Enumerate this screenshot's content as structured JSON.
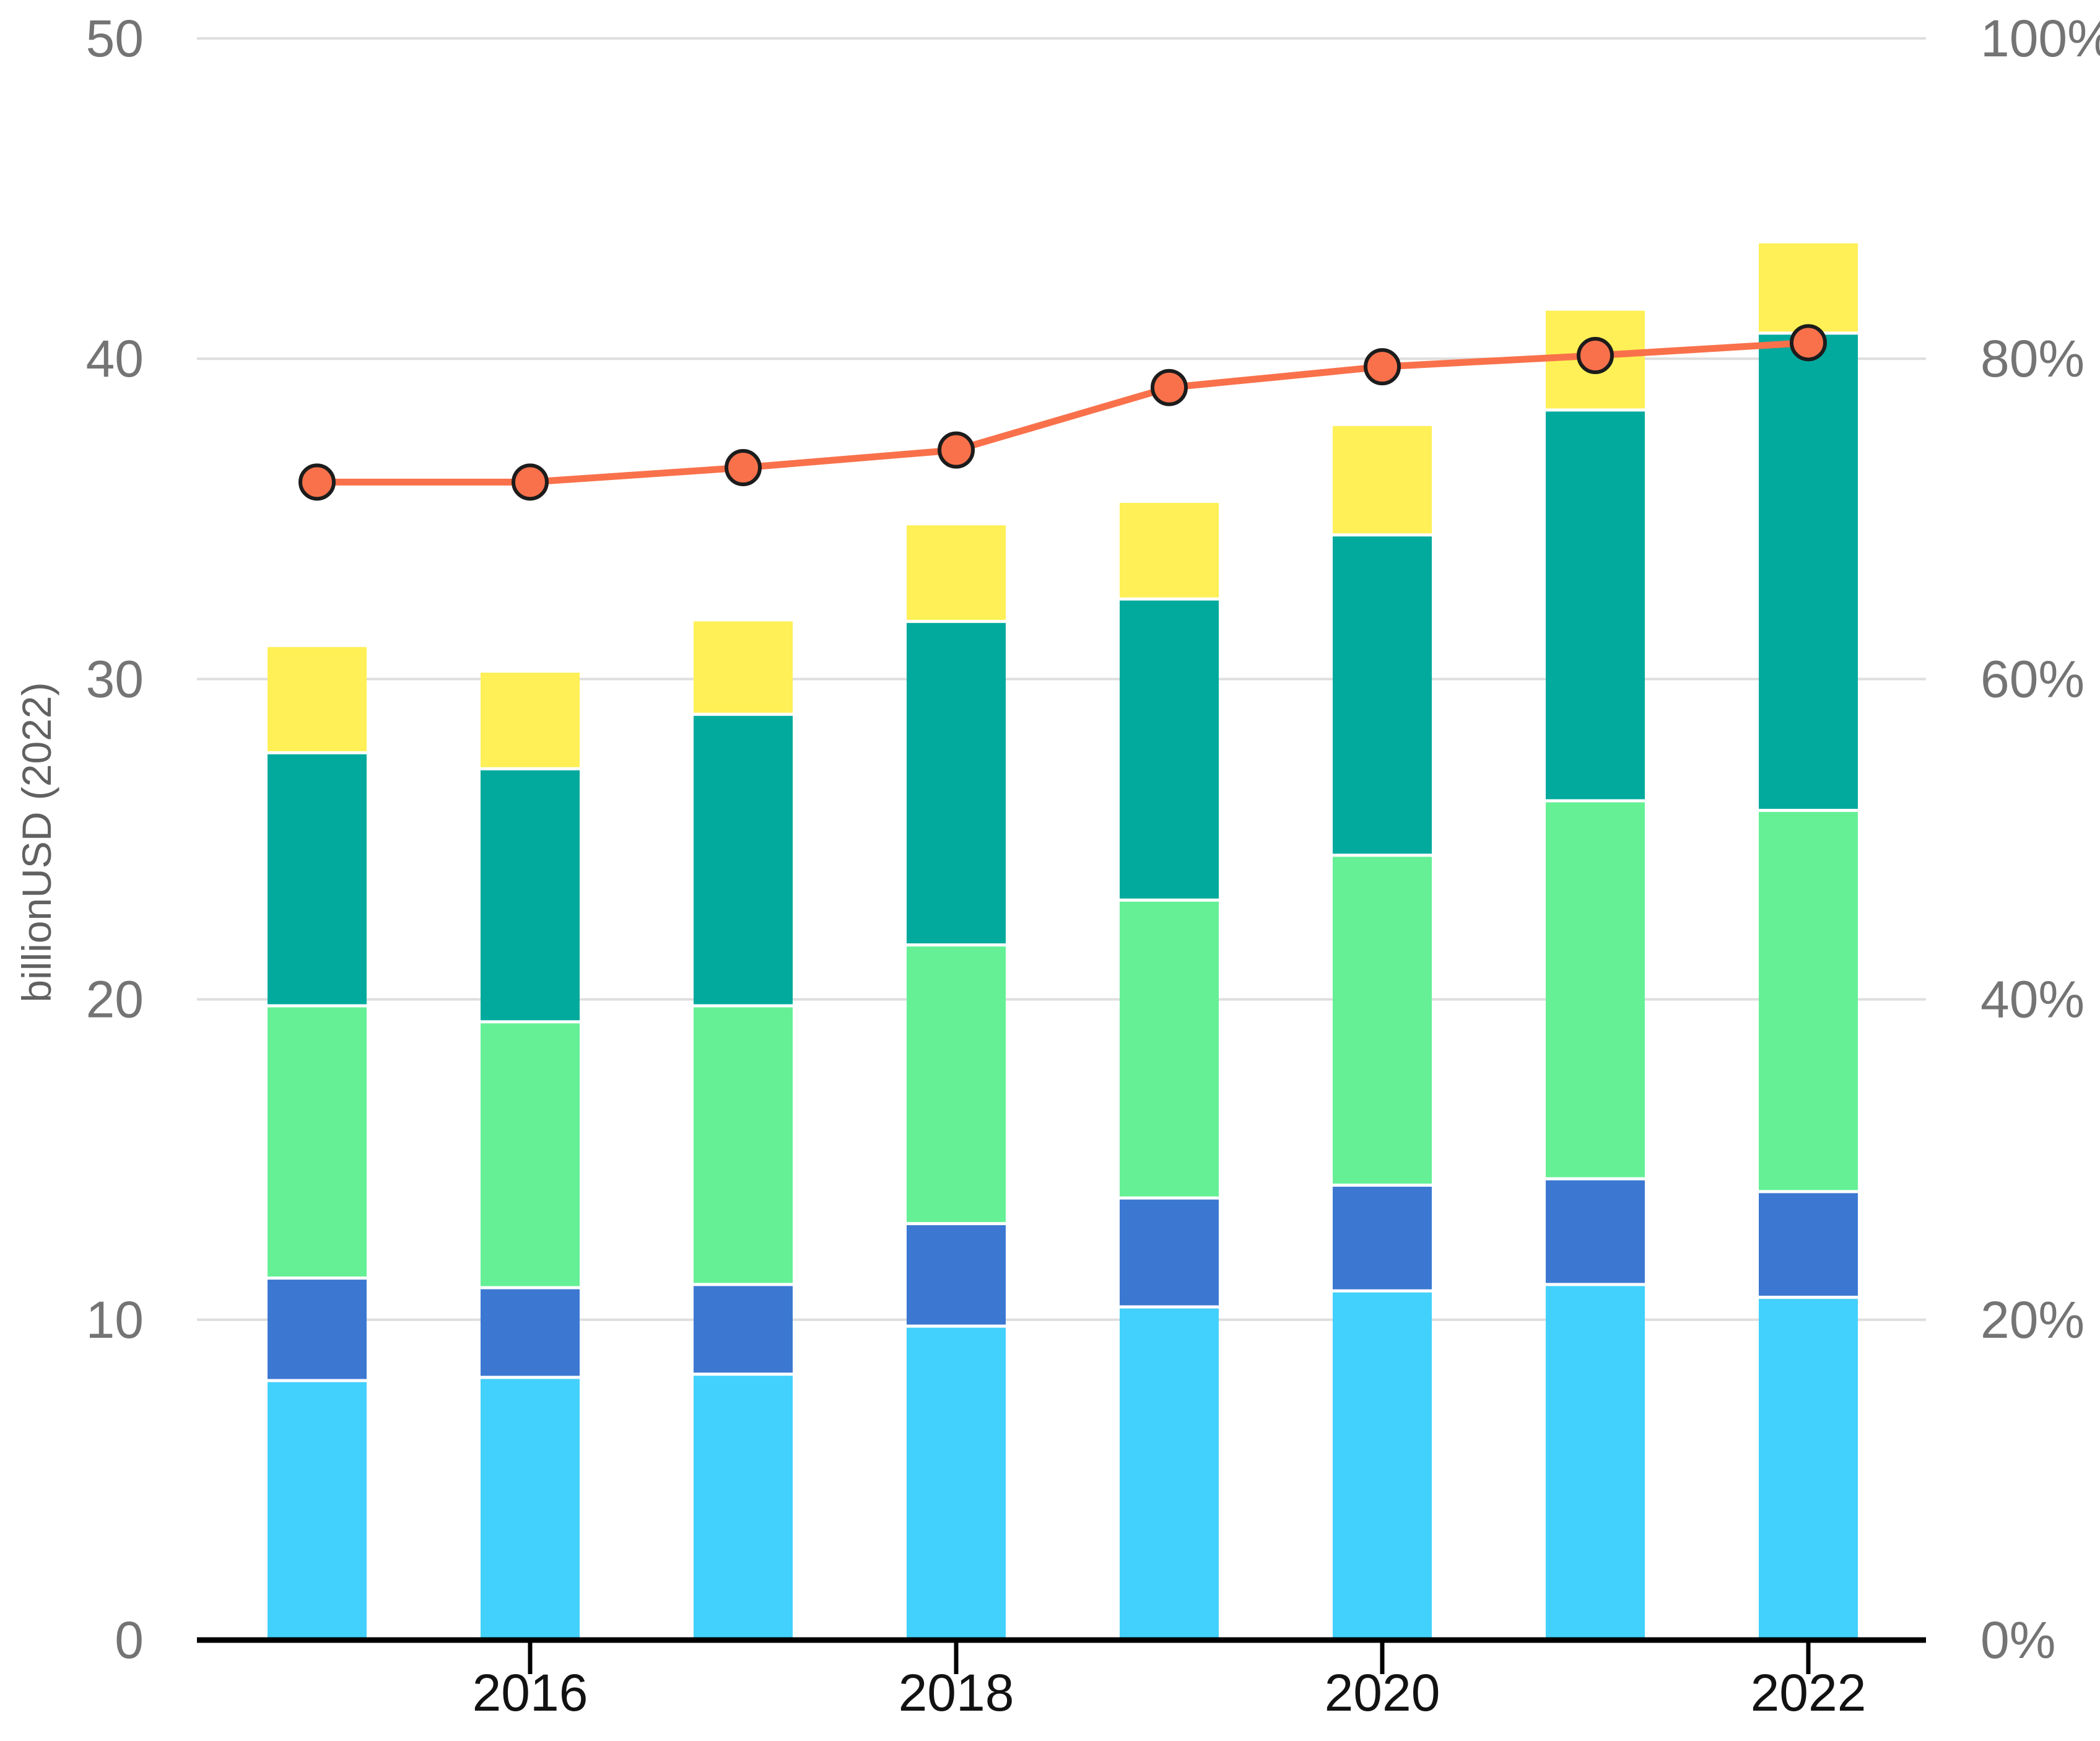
{
  "chart_data": {
    "type": "bar+line",
    "title": "",
    "categories": [
      2015,
      2016,
      2017,
      2018,
      2019,
      2020,
      2021,
      2022
    ],
    "series": [
      {
        "name": "light-blue-bottom-segment",
        "color": "#42D1FC",
        "values": [
          8.1,
          8.2,
          8.3,
          9.8,
          10.4,
          10.9,
          11.1,
          10.7
        ]
      },
      {
        "name": "royal-blue-segment",
        "color": "#3C78D2",
        "values": [
          3.2,
          2.8,
          2.8,
          3.2,
          3.4,
          3.3,
          3.3,
          3.3
        ]
      },
      {
        "name": "light-green-segment",
        "color": "#65F096",
        "values": [
          8.5,
          8.3,
          8.7,
          8.7,
          9.3,
          10.3,
          11.8,
          11.9
        ]
      },
      {
        "name": "teal-segment",
        "color": "#01AA9D",
        "values": [
          7.9,
          7.9,
          9.1,
          10.1,
          9.4,
          10.0,
          12.2,
          14.9
        ]
      },
      {
        "name": "yellow-top-segment",
        "color": "#FEF056",
        "values": [
          3.3,
          3.0,
          2.9,
          3.0,
          3.0,
          3.4,
          3.1,
          2.8
        ]
      }
    ],
    "bar_totals": [
      31.0,
      30.2,
      31.8,
      34.8,
      35.5,
      37.9,
      41.5,
      43.6
    ],
    "line_series": {
      "name": "percent-trend-line",
      "color": "#F9714B",
      "marker_stroke": "#1c1c1c",
      "axis": "right",
      "values_percent": [
        72.3,
        72.3,
        73.2,
        74.3,
        78.2,
        79.5,
        80.2,
        81.0
      ]
    },
    "left_axis": {
      "label": "billionUSD (2022)",
      "ticks": [
        "0",
        "10",
        "20",
        "30",
        "40",
        "50"
      ],
      "range": [
        0,
        50
      ]
    },
    "right_axis": {
      "ticks": [
        "0%",
        "20%",
        "40%",
        "60%",
        "80%",
        "100%"
      ],
      "range": [
        0,
        100
      ]
    },
    "x_axis": {
      "tick_labels": [
        "2016",
        "2018",
        "2020",
        "2022"
      ]
    },
    "grid": true,
    "legend": "none",
    "colors": {
      "gridline": "#DEDEDE",
      "axis_line": "#000000",
      "separator": "#FFFFFF",
      "tick_label": "#747474",
      "year_label": "#121212",
      "axis_title": "#616161"
    }
  }
}
